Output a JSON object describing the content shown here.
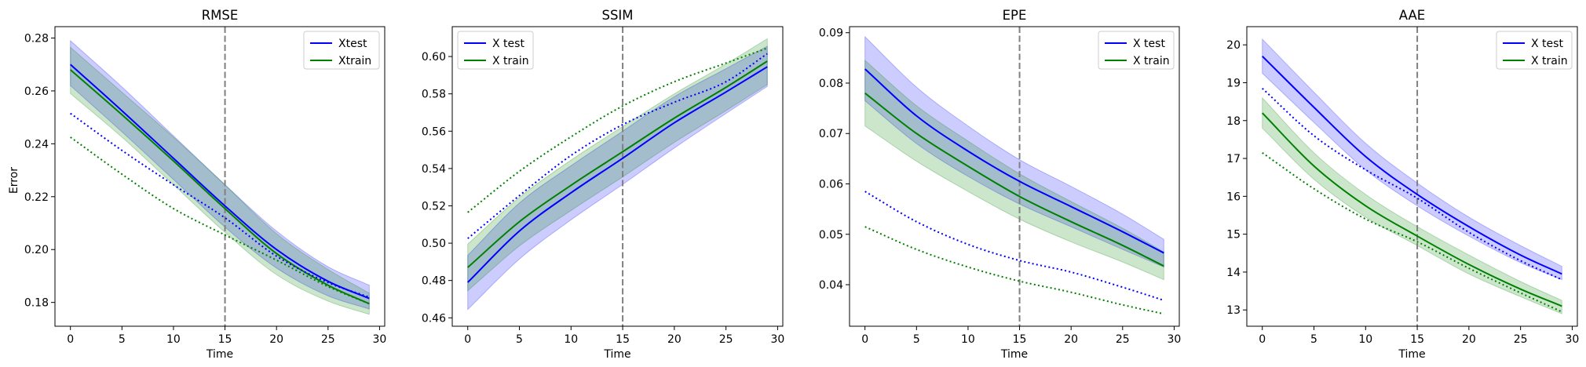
{
  "figure": {
    "xlabel": "Time",
    "ylabel": "Error"
  },
  "chart_data": [
    {
      "type": "line",
      "title": "RMSE",
      "xlabel": "Time",
      "ylabel": "Error",
      "xlim": [
        -1.5,
        30.5
      ],
      "ylim": [
        0.171,
        0.2843
      ],
      "xticks": [
        0,
        5,
        10,
        15,
        20,
        25,
        30
      ],
      "yticks": [
        0.18,
        0.2,
        0.22,
        0.24,
        0.26,
        0.28
      ],
      "ytick_labels": [
        "0.18",
        "0.20",
        "0.22",
        "0.24",
        "0.26",
        "0.28"
      ],
      "vline_x": 15,
      "legend_position": "upper right",
      "legend": [
        {
          "label": "Xtest",
          "color": "#0000ff"
        },
        {
          "label": "Xtrain",
          "color": "#008000"
        }
      ],
      "x": [
        0,
        5,
        10,
        15,
        20,
        25,
        29
      ],
      "series": [
        {
          "name": "Xtest",
          "style": "solid",
          "color": "#0000ff",
          "values": [
            0.27,
            0.2525,
            0.2345,
            0.2165,
            0.2,
            0.188,
            0.1815
          ],
          "band_lower": [
            0.262,
            0.2445,
            0.2265,
            0.2085,
            0.193,
            0.1825,
            0.1775
          ],
          "band_upper": [
            0.279,
            0.2615,
            0.243,
            0.2245,
            0.207,
            0.1935,
            0.1865
          ]
        },
        {
          "name": "Xtrain",
          "style": "solid",
          "color": "#008000",
          "values": [
            0.268,
            0.251,
            0.2335,
            0.2155,
            0.1985,
            0.1865,
            0.1795
          ],
          "band_lower": [
            0.259,
            0.2425,
            0.2245,
            0.2065,
            0.1905,
            0.1805,
            0.1755
          ],
          "band_upper": [
            0.2765,
            0.2595,
            0.2425,
            0.2245,
            0.206,
            0.1925,
            0.1835
          ]
        },
        {
          "style": "dotted",
          "color": "#0000ff",
          "values": [
            0.2515,
            0.2375,
            0.2245,
            0.212,
            0.1975,
            0.1875,
            0.182
          ]
        },
        {
          "style": "dotted",
          "color": "#008000",
          "values": [
            0.2425,
            0.2285,
            0.2155,
            0.2055,
            0.196,
            0.186,
            0.1795
          ]
        }
      ]
    },
    {
      "type": "line",
      "title": "SSIM",
      "xlabel": "Time",
      "ylabel": "",
      "xlim": [
        -1.5,
        30.5
      ],
      "ylim": [
        0.4555,
        0.616
      ],
      "xticks": [
        0,
        5,
        10,
        15,
        20,
        25,
        30
      ],
      "yticks": [
        0.46,
        0.48,
        0.5,
        0.52,
        0.54,
        0.56,
        0.58,
        0.6
      ],
      "ytick_labels": [
        "0.46",
        "0.48",
        "0.50",
        "0.52",
        "0.54",
        "0.56",
        "0.58",
        "0.60"
      ],
      "vline_x": 15,
      "legend_position": "upper left",
      "legend": [
        {
          "label": "X test",
          "color": "#0000ff"
        },
        {
          "label": "X train",
          "color": "#008000"
        }
      ],
      "x": [
        0,
        5,
        10,
        15,
        20,
        25,
        29
      ],
      "series": [
        {
          "name": "X test",
          "style": "solid",
          "color": "#0000ff",
          "values": [
            0.479,
            0.5065,
            0.527,
            0.5455,
            0.5645,
            0.581,
            0.5945
          ],
          "band_lower": [
            0.4645,
            0.4915,
            0.5125,
            0.5315,
            0.551,
            0.5695,
            0.584
          ],
          "band_upper": [
            0.4935,
            0.5215,
            0.5415,
            0.56,
            0.5785,
            0.5935,
            0.6055
          ]
        },
        {
          "name": "X train",
          "style": "solid",
          "color": "#008000",
          "values": [
            0.487,
            0.5115,
            0.531,
            0.549,
            0.567,
            0.5835,
            0.5975
          ],
          "band_lower": [
            0.4745,
            0.4985,
            0.5175,
            0.5355,
            0.554,
            0.571,
            0.585
          ],
          "band_upper": [
            0.4995,
            0.5245,
            0.5445,
            0.5625,
            0.58,
            0.596,
            0.6095
          ]
        },
        {
          "style": "dotted",
          "color": "#0000ff",
          "values": [
            0.5025,
            0.5255,
            0.547,
            0.5635,
            0.5755,
            0.5865,
            0.6015
          ]
        },
        {
          "style": "dotted",
          "color": "#008000",
          "values": [
            0.5165,
            0.5385,
            0.557,
            0.5735,
            0.5865,
            0.5965,
            0.6045
          ]
        }
      ]
    },
    {
      "type": "line",
      "title": "EPE",
      "xlabel": "Time",
      "ylabel": "",
      "xlim": [
        -1.5,
        30.5
      ],
      "ylim": [
        0.03176,
        0.0912
      ],
      "xticks": [
        0,
        5,
        10,
        15,
        20,
        25,
        30
      ],
      "yticks": [
        0.04,
        0.05,
        0.06,
        0.07,
        0.08,
        0.09
      ],
      "ytick_labels": [
        "0.04",
        "0.05",
        "0.06",
        "0.07",
        "0.08",
        "0.09"
      ],
      "vline_x": 15,
      "legend_position": "upper right",
      "legend": [
        {
          "label": "X test",
          "color": "#0000ff"
        },
        {
          "label": "X train",
          "color": "#008000"
        }
      ],
      "x": [
        0,
        5,
        10,
        15,
        20,
        25,
        29
      ],
      "series": [
        {
          "name": "X test",
          "style": "solid",
          "color": "#0000ff",
          "values": [
            0.0828,
            0.0735,
            0.0665,
            0.0605,
            0.0555,
            0.0505,
            0.0463
          ],
          "band_lower": [
            0.0765,
            0.068,
            0.0615,
            0.056,
            0.0515,
            0.047,
            0.0435
          ],
          "band_upper": [
            0.0892,
            0.0792,
            0.0715,
            0.0648,
            0.0595,
            0.054,
            0.049
          ]
        },
        {
          "name": "X train",
          "style": "solid",
          "color": "#008000",
          "values": [
            0.078,
            0.07,
            0.0635,
            0.0575,
            0.0525,
            0.0478,
            0.0437
          ],
          "band_lower": [
            0.0715,
            0.0645,
            0.0585,
            0.053,
            0.0485,
            0.0445,
            0.041
          ],
          "band_upper": [
            0.0845,
            0.0755,
            0.0685,
            0.062,
            0.0565,
            0.0512,
            0.0465
          ]
        },
        {
          "style": "dotted",
          "color": "#0000ff",
          "values": [
            0.0585,
            0.0525,
            0.048,
            0.0448,
            0.0425,
            0.0395,
            0.0369
          ]
        },
        {
          "style": "dotted",
          "color": "#008000",
          "values": [
            0.0515,
            0.047,
            0.0435,
            0.0407,
            0.0385,
            0.036,
            0.0342
          ]
        }
      ]
    },
    {
      "type": "line",
      "title": "AAE",
      "xlabel": "Time",
      "ylabel": "",
      "xlim": [
        -1.5,
        30.5
      ],
      "ylim": [
        12.57,
        20.48
      ],
      "xticks": [
        0,
        5,
        10,
        15,
        20,
        25,
        30
      ],
      "yticks": [
        13,
        14,
        15,
        16,
        17,
        18,
        19,
        20
      ],
      "ytick_labels": [
        "13",
        "14",
        "15",
        "16",
        "17",
        "18",
        "19",
        "20"
      ],
      "vline_x": 15,
      "legend_position": "upper right",
      "legend": [
        {
          "label": "X test",
          "color": "#0000ff"
        },
        {
          "label": "X train",
          "color": "#008000"
        }
      ],
      "x": [
        0,
        5,
        10,
        15,
        20,
        25,
        29
      ],
      "series": [
        {
          "name": "X test",
          "style": "solid",
          "color": "#0000ff",
          "values": [
            19.7,
            18.35,
            17.05,
            16.05,
            15.2,
            14.45,
            13.95
          ],
          "band_lower": [
            19.25,
            17.95,
            16.7,
            15.75,
            14.95,
            14.25,
            13.8
          ],
          "band_upper": [
            20.15,
            18.75,
            17.4,
            16.35,
            15.45,
            14.7,
            14.15
          ]
        },
        {
          "name": "X train",
          "style": "solid",
          "color": "#008000",
          "values": [
            18.2,
            16.8,
            15.75,
            14.95,
            14.2,
            13.55,
            13.1
          ],
          "band_lower": [
            17.8,
            16.45,
            15.45,
            14.7,
            13.95,
            13.35,
            12.9
          ],
          "band_upper": [
            18.6,
            17.15,
            16.05,
            15.2,
            14.45,
            13.75,
            13.25
          ]
        },
        {
          "style": "dotted",
          "color": "#0000ff",
          "values": [
            18.85,
            17.6,
            16.7,
            15.95,
            15.05,
            14.3,
            13.8
          ]
        },
        {
          "style": "dotted",
          "color": "#008000",
          "values": [
            17.15,
            16.2,
            15.4,
            14.8,
            14.1,
            13.45,
            12.95
          ]
        }
      ]
    }
  ]
}
